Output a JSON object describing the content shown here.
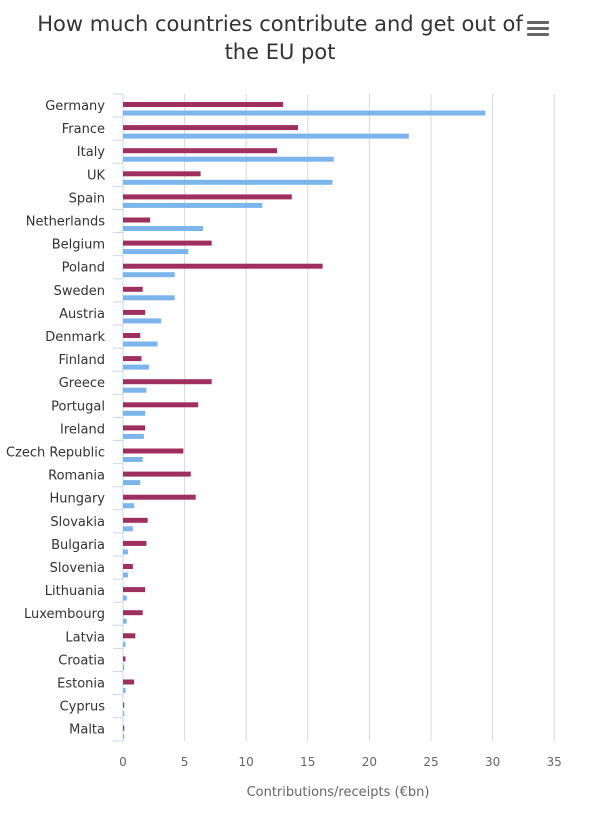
{
  "title": "How much countries contribute and get out of the EU pot",
  "chart_data": {
    "type": "bar",
    "orientation": "horizontal",
    "title": "How much countries contribute and get out of the EU pot",
    "xlabel": "Contributions/receipts (€bn)",
    "xlim": [
      0,
      35
    ],
    "xticks": [
      0,
      5,
      10,
      15,
      20,
      25,
      30,
      35
    ],
    "grid": true,
    "categories": [
      "Germany",
      "France",
      "Italy",
      "UK",
      "Spain",
      "Netherlands",
      "Belgium",
      "Poland",
      "Sweden",
      "Austria",
      "Denmark",
      "Finland",
      "Greece",
      "Portugal",
      "Ireland",
      "Czech Republic",
      "Romania",
      "Hungary",
      "Slovakia",
      "Bulgaria",
      "Slovenia",
      "Lithuania",
      "Luxembourg",
      "Latvia",
      "Croatia",
      "Estonia",
      "Cyprus",
      "Malta"
    ],
    "series": [
      {
        "color": "#9e2f5e",
        "values": [
          13.0,
          14.2,
          12.5,
          6.3,
          13.7,
          2.2,
          7.2,
          16.2,
          1.6,
          1.8,
          1.4,
          1.5,
          7.2,
          6.1,
          1.8,
          4.9,
          5.5,
          5.9,
          2.0,
          1.9,
          0.8,
          1.8,
          1.6,
          1.0,
          0.2,
          0.9,
          0.1,
          0.1
        ]
      },
      {
        "color": "#7cb5ec",
        "values": [
          29.4,
          23.2,
          17.1,
          17.0,
          11.3,
          6.5,
          5.3,
          4.2,
          4.2,
          3.1,
          2.8,
          2.1,
          1.9,
          1.8,
          1.7,
          1.6,
          1.4,
          0.9,
          0.8,
          0.4,
          0.4,
          0.3,
          0.3,
          0.2,
          0.1,
          0.2,
          0.1,
          0.1
        ]
      }
    ]
  }
}
